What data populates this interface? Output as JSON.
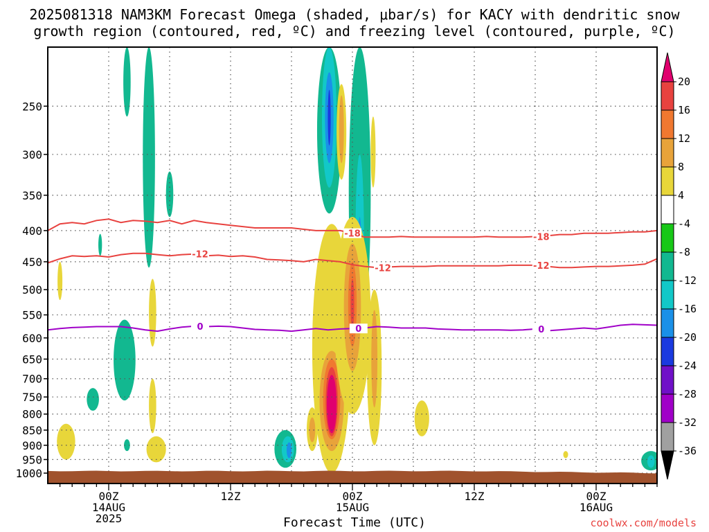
{
  "title_line1": "2025081318 NAM3KM Forecast Omega (shaded, μbar/s) for KACY with dendritic snow",
  "title_line2": "growth region (contoured, red, ºC) and freezing level (contoured, purple, ºC)",
  "x_title": "Forecast Time (UTC)",
  "credit": "coolwx.com/models",
  "chart_data": {
    "type": "heatmap",
    "title": "2025081318 NAM3KM Forecast Omega (shaded, μbar/s) for KACY",
    "xlabel": "Forecast Time (UTC)",
    "ylabel": "",
    "y_scale": "log-pressure",
    "ylim": [
      1040,
      200
    ],
    "y_ticks": [
      250,
      300,
      350,
      400,
      450,
      500,
      550,
      600,
      650,
      700,
      750,
      800,
      850,
      900,
      950,
      1000
    ],
    "x_range_hours": [
      -5,
      45
    ],
    "x_ticks": [
      {
        "hour": 0,
        "lines": [
          "00Z",
          "14AUG",
          "2025"
        ]
      },
      {
        "hour": 10,
        "lines": [
          "12Z"
        ]
      },
      {
        "hour": 20,
        "lines": [
          "00Z",
          "15AUG"
        ]
      },
      {
        "hour": 30,
        "lines": [
          "12Z"
        ]
      },
      {
        "hour": 40,
        "lines": [
          "00Z",
          "16AUG"
        ]
      }
    ],
    "colorbar": {
      "labels": [
        "20",
        "16",
        "12",
        "8",
        "4",
        "-4",
        "-8",
        "-12",
        "-16",
        "-20",
        "-24",
        "-28",
        "-32",
        "-36"
      ],
      "colors": [
        "#e0006e",
        "#e8423f",
        "#f07830",
        "#e8a33a",
        "#e8d63a",
        "#ffffff",
        "#18c818",
        "#12b890",
        "#12c8c8",
        "#1a90e8",
        "#1a3ae0",
        "#7010c8",
        "#a000c8",
        "#a0a0a0"
      ],
      "top_triangle": "#e0006e",
      "bottom_triangle": "#000000"
    },
    "contours": [
      {
        "label": "-18",
        "color": "#e8423f",
        "points": [
          [
            -5,
            400
          ],
          [
            -4,
            390
          ],
          [
            -3,
            388
          ],
          [
            -2,
            390
          ],
          [
            -1,
            385
          ],
          [
            0,
            383
          ],
          [
            1,
            388
          ],
          [
            2,
            385
          ],
          [
            3,
            386
          ],
          [
            4,
            388
          ],
          [
            5,
            385
          ],
          [
            6,
            390
          ],
          [
            7,
            385
          ],
          [
            8,
            388
          ],
          [
            9,
            390
          ],
          [
            10,
            392
          ],
          [
            11,
            394
          ],
          [
            12,
            396
          ],
          [
            13,
            396
          ],
          [
            14,
            396
          ],
          [
            15,
            396
          ],
          [
            16,
            398
          ],
          [
            17,
            400
          ],
          [
            18,
            400
          ],
          [
            19,
            400
          ],
          [
            20,
            404
          ],
          [
            21,
            410
          ],
          [
            22,
            410
          ],
          [
            23,
            410
          ],
          [
            24,
            409
          ],
          [
            25,
            410
          ],
          [
            26,
            410
          ],
          [
            27,
            410
          ],
          [
            28,
            410
          ],
          [
            29,
            410
          ],
          [
            30,
            410
          ],
          [
            31,
            409
          ],
          [
            32,
            410
          ],
          [
            33,
            410
          ],
          [
            34,
            410
          ],
          [
            35,
            409
          ],
          [
            36,
            408
          ],
          [
            37,
            406
          ],
          [
            38,
            406
          ],
          [
            39,
            404
          ],
          [
            40,
            404
          ],
          [
            41,
            404
          ],
          [
            42,
            403
          ],
          [
            43,
            402
          ],
          [
            44,
            402
          ],
          [
            45,
            400
          ]
        ],
        "label_hours": [
          20,
          35.5
        ]
      },
      {
        "label": "-12",
        "color": "#e8423f",
        "points": [
          [
            -5,
            452
          ],
          [
            -4,
            445
          ],
          [
            -3,
            440
          ],
          [
            -2,
            441
          ],
          [
            -1,
            440
          ],
          [
            0,
            442
          ],
          [
            1,
            438
          ],
          [
            2,
            436
          ],
          [
            3,
            436
          ],
          [
            4,
            438
          ],
          [
            5,
            440
          ],
          [
            6,
            438
          ],
          [
            7,
            437
          ],
          [
            8,
            440
          ],
          [
            9,
            439
          ],
          [
            10,
            441
          ],
          [
            11,
            440
          ],
          [
            12,
            442
          ],
          [
            13,
            446
          ],
          [
            14,
            447
          ],
          [
            15,
            448
          ],
          [
            16,
            450
          ],
          [
            17,
            446
          ],
          [
            18,
            448
          ],
          [
            19,
            450
          ],
          [
            20,
            455
          ],
          [
            21,
            458
          ],
          [
            22,
            460
          ],
          [
            23,
            459
          ],
          [
            24,
            458
          ],
          [
            25,
            458
          ],
          [
            26,
            458
          ],
          [
            27,
            457
          ],
          [
            28,
            457
          ],
          [
            29,
            457
          ],
          [
            30,
            457
          ],
          [
            31,
            457
          ],
          [
            32,
            457
          ],
          [
            33,
            456
          ],
          [
            34,
            456
          ],
          [
            35,
            456
          ],
          [
            36,
            458
          ],
          [
            37,
            460
          ],
          [
            38,
            460
          ],
          [
            39,
            459
          ],
          [
            40,
            458
          ],
          [
            41,
            458
          ],
          [
            42,
            457
          ],
          [
            43,
            456
          ],
          [
            44,
            454
          ],
          [
            45,
            445
          ]
        ],
        "label_hours": [
          7.5,
          22.5,
          35.5
        ]
      },
      {
        "label": "0",
        "color": "#a000c8",
        "points": [
          [
            -5,
            582
          ],
          [
            -4,
            579
          ],
          [
            -3,
            577
          ],
          [
            -2,
            576
          ],
          [
            -1,
            575
          ],
          [
            0,
            575
          ],
          [
            1,
            575
          ],
          [
            2,
            578
          ],
          [
            3,
            582
          ],
          [
            4,
            585
          ],
          [
            5,
            580
          ],
          [
            6,
            576
          ],
          [
            7,
            574
          ],
          [
            8,
            575
          ],
          [
            9,
            574
          ],
          [
            10,
            575
          ],
          [
            11,
            578
          ],
          [
            12,
            581
          ],
          [
            13,
            582
          ],
          [
            14,
            583
          ],
          [
            15,
            585
          ],
          [
            16,
            582
          ],
          [
            17,
            579
          ],
          [
            18,
            582
          ],
          [
            19,
            580
          ],
          [
            20,
            579
          ],
          [
            21,
            578
          ],
          [
            22,
            575
          ],
          [
            23,
            576
          ],
          [
            24,
            578
          ],
          [
            25,
            578
          ],
          [
            26,
            578
          ],
          [
            27,
            580
          ],
          [
            28,
            581
          ],
          [
            29,
            582
          ],
          [
            30,
            582
          ],
          [
            31,
            582
          ],
          [
            32,
            582
          ],
          [
            33,
            583
          ],
          [
            34,
            582
          ],
          [
            35,
            580
          ],
          [
            36,
            584
          ],
          [
            37,
            582
          ],
          [
            38,
            580
          ],
          [
            39,
            578
          ],
          [
            40,
            580
          ],
          [
            41,
            576
          ],
          [
            42,
            572
          ],
          [
            43,
            570
          ],
          [
            44,
            571
          ],
          [
            45,
            572
          ]
        ],
        "label_hours": [
          7.5,
          20.5,
          35.5
        ]
      }
    ],
    "shaded_regions": [
      {
        "value": -8,
        "center": [
          1.5,
          220
        ],
        "radius_hours": 0.3,
        "pressure_range": [
          200,
          260
        ]
      },
      {
        "value": -8,
        "center": [
          3.3,
          290
        ],
        "radius_hours": 0.5,
        "pressure_range": [
          200,
          460
        ]
      },
      {
        "value": -8,
        "center": [
          5.0,
          350
        ],
        "radius_hours": 0.3,
        "pressure_range": [
          320,
          380
        ]
      },
      {
        "value": -8,
        "center": [
          -0.7,
          420
        ],
        "radius_hours": 0.15,
        "pressure_range": [
          405,
          440
        ]
      },
      {
        "value": -8,
        "center": [
          1.3,
          650
        ],
        "radius_hours": 0.9,
        "pressure_range": [
          560,
          760
        ]
      },
      {
        "value": -8,
        "center": [
          -1.3,
          760
        ],
        "radius_hours": 0.5,
        "pressure_range": [
          725,
          790
        ]
      },
      {
        "value": -8,
        "center": [
          1.5,
          900
        ],
        "radius_hours": 0.25,
        "pressure_range": [
          880,
          920
        ]
      },
      {
        "value": -8,
        "center": [
          18.1,
          300
        ],
        "radius_hours": 1.0,
        "pressure_range": [
          200,
          375
        ]
      },
      {
        "value": -12,
        "center": [
          18.1,
          280
        ],
        "radius_hours": 0.6,
        "pressure_range": [
          200,
          340
        ]
      },
      {
        "value": -16,
        "center": [
          18.1,
          260
        ],
        "radius_hours": 0.35,
        "pressure_range": [
          220,
          310
        ]
      },
      {
        "value": -20,
        "center": [
          18.1,
          260
        ],
        "radius_hours": 0.12,
        "pressure_range": [
          235,
          290
        ]
      },
      {
        "value": -8,
        "center": [
          20.6,
          340
        ],
        "radius_hours": 0.9,
        "pressure_range": [
          200,
          600
        ]
      },
      {
        "value": -12,
        "center": [
          20.6,
          430
        ],
        "radius_hours": 0.35,
        "pressure_range": [
          300,
          580
        ]
      },
      {
        "value": -16,
        "center": [
          20.6,
          450
        ],
        "radius_hours": 0.15,
        "pressure_range": [
          380,
          520
        ]
      },
      {
        "value": -8,
        "center": [
          14.5,
          920
        ],
        "radius_hours": 0.9,
        "pressure_range": [
          850,
          980
        ]
      },
      {
        "value": -12,
        "center": [
          14.7,
          920
        ],
        "radius_hours": 0.5,
        "pressure_range": [
          870,
          960
        ]
      },
      {
        "value": -16,
        "center": [
          14.8,
          920
        ],
        "radius_hours": 0.2,
        "pressure_range": [
          890,
          945
        ]
      },
      {
        "value": -8,
        "center": [
          44.5,
          960
        ],
        "radius_hours": 0.8,
        "pressure_range": [
          920,
          990
        ]
      },
      {
        "value": -12,
        "center": [
          44.5,
          960
        ],
        "radius_hours": 0.3,
        "pressure_range": [
          935,
          980
        ]
      },
      {
        "value": 4,
        "center": [
          -4.0,
          480
        ],
        "radius_hours": 0.2,
        "pressure_range": [
          450,
          520
        ]
      },
      {
        "value": 4,
        "center": [
          -3.5,
          890
        ],
        "radius_hours": 0.75,
        "pressure_range": [
          830,
          950
        ]
      },
      {
        "value": 4,
        "center": [
          3.6,
          580
        ],
        "radius_hours": 0.3,
        "pressure_range": [
          480,
          620
        ]
      },
      {
        "value": 4,
        "center": [
          3.6,
          760
        ],
        "radius_hours": 0.3,
        "pressure_range": [
          700,
          860
        ]
      },
      {
        "value": 4,
        "center": [
          3.9,
          920
        ],
        "radius_hours": 0.8,
        "pressure_range": [
          870,
          960
        ]
      },
      {
        "value": 4,
        "center": [
          16.7,
          850
        ],
        "radius_hours": 0.45,
        "pressure_range": [
          780,
          920
        ]
      },
      {
        "value": 8,
        "center": [
          16.7,
          850
        ],
        "radius_hours": 0.25,
        "pressure_range": [
          810,
          890
        ]
      },
      {
        "value": 4,
        "center": [
          18.3,
          700
        ],
        "radius_hours": 1.6,
        "pressure_range": [
          390,
          1000
        ]
      },
      {
        "value": 8,
        "center": [
          18.3,
          770
        ],
        "radius_hours": 1.0,
        "pressure_range": [
          630,
          920
        ]
      },
      {
        "value": 12,
        "center": [
          18.3,
          780
        ],
        "radius_hours": 0.7,
        "pressure_range": [
          650,
          880
        ]
      },
      {
        "value": 16,
        "center": [
          18.3,
          780
        ],
        "radius_hours": 0.5,
        "pressure_range": [
          670,
          870
        ]
      },
      {
        "value": 20,
        "center": [
          18.3,
          780
        ],
        "radius_hours": 0.4,
        "pressure_range": [
          690,
          860
        ]
      },
      {
        "value": 4,
        "center": [
          20.0,
          560
        ],
        "radius_hours": 1.5,
        "pressure_range": [
          380,
          800
        ]
      },
      {
        "value": 8,
        "center": [
          20.0,
          520
        ],
        "radius_hours": 0.7,
        "pressure_range": [
          420,
          680
        ]
      },
      {
        "value": 12,
        "center": [
          20.0,
          520
        ],
        "radius_hours": 0.35,
        "pressure_range": [
          450,
          620
        ]
      },
      {
        "value": 16,
        "center": [
          20.0,
          520
        ],
        "radius_hours": 0.15,
        "pressure_range": [
          480,
          580
        ]
      },
      {
        "value": 4,
        "center": [
          19.1,
          260
        ],
        "radius_hours": 0.4,
        "pressure_range": [
          230,
          330
        ]
      },
      {
        "value": 8,
        "center": [
          19.1,
          260
        ],
        "radius_hours": 0.2,
        "pressure_range": [
          240,
          310
        ]
      },
      {
        "value": 4,
        "center": [
          21.7,
          300
        ],
        "radius_hours": 0.2,
        "pressure_range": [
          260,
          340
        ]
      },
      {
        "value": 4,
        "center": [
          21.8,
          600
        ],
        "radius_hours": 0.6,
        "pressure_range": [
          500,
          900
        ]
      },
      {
        "value": 8,
        "center": [
          21.8,
          600
        ],
        "radius_hours": 0.25,
        "pressure_range": [
          540,
          780
        ]
      },
      {
        "value": 4,
        "center": [
          25.7,
          820
        ],
        "radius_hours": 0.6,
        "pressure_range": [
          760,
          870
        ]
      },
      {
        "value": 4,
        "center": [
          37.5,
          930
        ],
        "radius_hours": 0.2,
        "pressure_range": [
          920,
          945
        ]
      }
    ]
  }
}
